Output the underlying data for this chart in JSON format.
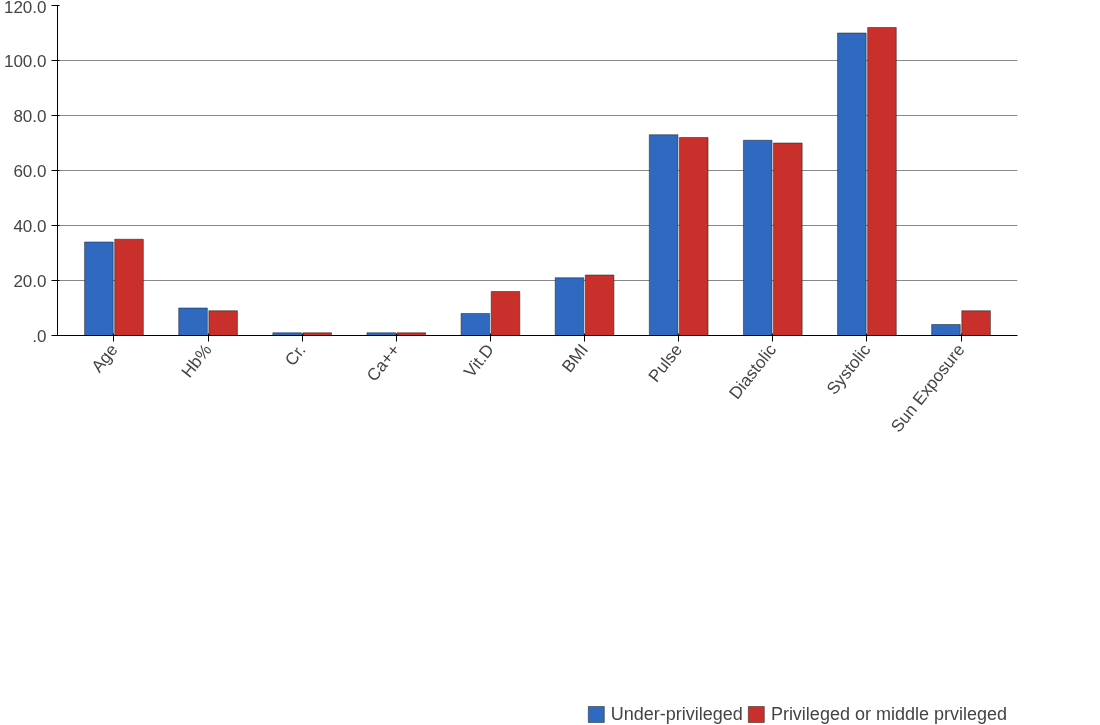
{
  "chart_data": {
    "type": "bar",
    "categories": [
      "Age",
      "Hb%",
      "Cr.",
      "Ca++",
      "Vit.D",
      "BMI",
      "Pulse",
      "Diastolic",
      "Systolic",
      "Sun Exposure"
    ],
    "series": [
      {
        "name": "Under-privileged",
        "color": "#2f6ac0",
        "values": [
          34,
          10,
          1,
          1,
          8,
          21,
          73,
          71,
          110,
          4
        ]
      },
      {
        "name": "Privileged or middle prvileged",
        "color": "#c9302c",
        "values": [
          35,
          9,
          1,
          1,
          16,
          22,
          72,
          70,
          112,
          9
        ]
      }
    ],
    "ylim": [
      0,
      120
    ],
    "yticks": [
      {
        "value": 0,
        "label": ".0"
      },
      {
        "value": 20,
        "label": "20.0"
      },
      {
        "value": 40,
        "label": "40.0"
      },
      {
        "value": 60,
        "label": "60.0"
      },
      {
        "value": 80,
        "label": "80.0"
      },
      {
        "value": 100,
        "label": "100.0"
      },
      {
        "value": 120,
        "label": "120.0"
      }
    ],
    "grid": "y",
    "legend": "bottom"
  }
}
